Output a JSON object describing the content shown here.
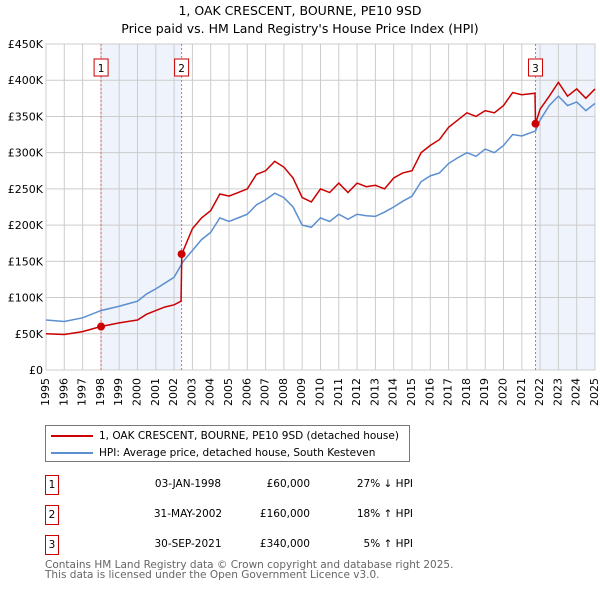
{
  "chart_data": {
    "type": "line",
    "title": "1, OAK CRESCENT, BOURNE, PE10 9SD",
    "subtitle": "Price paid vs. HM Land Registry's House Price Index (HPI)",
    "xlim": [
      1995,
      2025
    ],
    "ylim": [
      0,
      450000
    ],
    "x_ticks": [
      "1995",
      "1996",
      "1997",
      "1998",
      "1999",
      "2000",
      "2001",
      "2002",
      "2003",
      "2004",
      "2005",
      "2006",
      "2007",
      "2008",
      "2009",
      "2010",
      "2011",
      "2012",
      "2013",
      "2014",
      "2015",
      "2016",
      "2017",
      "2018",
      "2019",
      "2020",
      "2021",
      "2022",
      "2023",
      "2024",
      "2025"
    ],
    "y_ticks": [
      {
        "v": 0,
        "label": "£0"
      },
      {
        "v": 50000,
        "label": "£50K"
      },
      {
        "v": 100000,
        "label": "£100K"
      },
      {
        "v": 150000,
        "label": "£150K"
      },
      {
        "v": 200000,
        "label": "£200K"
      },
      {
        "v": 250000,
        "label": "£250K"
      },
      {
        "v": 300000,
        "label": "£300K"
      },
      {
        "v": 350000,
        "label": "£350K"
      },
      {
        "v": 400000,
        "label": "£400K"
      },
      {
        "v": 450000,
        "label": "£450K"
      }
    ],
    "grid": true,
    "series": [
      {
        "name": "1, OAK CRESCENT, BOURNE, PE10 9SD (detached house)",
        "color": "#cc0000",
        "points": [
          [
            1995,
            50
          ],
          [
            1996,
            49
          ],
          [
            1997,
            53
          ],
          [
            1998,
            60
          ],
          [
            1999,
            65
          ],
          [
            2000,
            69
          ],
          [
            2000.5,
            77
          ],
          [
            2001,
            82
          ],
          [
            2001.5,
            87
          ],
          [
            2002,
            90
          ],
          [
            2002.38,
            95
          ],
          [
            2002.42,
            160
          ],
          [
            2003,
            195
          ],
          [
            2003.5,
            210
          ],
          [
            2004,
            220
          ],
          [
            2004.5,
            243
          ],
          [
            2005,
            240
          ],
          [
            2005.5,
            245
          ],
          [
            2006,
            250
          ],
          [
            2006.5,
            270
          ],
          [
            2007,
            275
          ],
          [
            2007.5,
            288
          ],
          [
            2008,
            280
          ],
          [
            2008.5,
            265
          ],
          [
            2009,
            238
          ],
          [
            2009.5,
            232
          ],
          [
            2010,
            250
          ],
          [
            2010.5,
            245
          ],
          [
            2011,
            258
          ],
          [
            2011.5,
            245
          ],
          [
            2012,
            258
          ],
          [
            2012.5,
            253
          ],
          [
            2013,
            255
          ],
          [
            2013.5,
            250
          ],
          [
            2014,
            265
          ],
          [
            2014.5,
            272
          ],
          [
            2015,
            275
          ],
          [
            2015.5,
            300
          ],
          [
            2016,
            310
          ],
          [
            2016.5,
            318
          ],
          [
            2017,
            335
          ],
          [
            2017.5,
            345
          ],
          [
            2018,
            355
          ],
          [
            2018.5,
            350
          ],
          [
            2019,
            358
          ],
          [
            2019.5,
            355
          ],
          [
            2020,
            365
          ],
          [
            2020.5,
            383
          ],
          [
            2021,
            380
          ],
          [
            2021.72,
            382
          ],
          [
            2021.75,
            340
          ],
          [
            2022,
            360
          ],
          [
            2022.5,
            378
          ],
          [
            2023,
            397
          ],
          [
            2023.5,
            378
          ],
          [
            2024,
            388
          ],
          [
            2024.5,
            375
          ],
          [
            2025,
            388
          ]
        ]
      },
      {
        "name": "HPI: Average price, detached house, South Kesteven",
        "color": "#5b8fd0",
        "points": [
          [
            1995,
            69
          ],
          [
            1996,
            67
          ],
          [
            1997,
            72
          ],
          [
            1998,
            82
          ],
          [
            1999,
            88
          ],
          [
            2000,
            95
          ],
          [
            2000.5,
            105
          ],
          [
            2001,
            112
          ],
          [
            2001.5,
            120
          ],
          [
            2002,
            128
          ],
          [
            2002.5,
            150
          ],
          [
            2003,
            165
          ],
          [
            2003.5,
            180
          ],
          [
            2004,
            190
          ],
          [
            2004.5,
            210
          ],
          [
            2005,
            205
          ],
          [
            2005.5,
            210
          ],
          [
            2006,
            215
          ],
          [
            2006.5,
            228
          ],
          [
            2007,
            235
          ],
          [
            2007.5,
            244
          ],
          [
            2008,
            238
          ],
          [
            2008.5,
            225
          ],
          [
            2009,
            200
          ],
          [
            2009.5,
            197
          ],
          [
            2010,
            210
          ],
          [
            2010.5,
            205
          ],
          [
            2011,
            215
          ],
          [
            2011.5,
            208
          ],
          [
            2012,
            215
          ],
          [
            2012.5,
            213
          ],
          [
            2013,
            212
          ],
          [
            2013.5,
            218
          ],
          [
            2014,
            225
          ],
          [
            2014.5,
            233
          ],
          [
            2015,
            240
          ],
          [
            2015.5,
            260
          ],
          [
            2016,
            268
          ],
          [
            2016.5,
            272
          ],
          [
            2017,
            285
          ],
          [
            2017.5,
            293
          ],
          [
            2018,
            300
          ],
          [
            2018.5,
            295
          ],
          [
            2019,
            305
          ],
          [
            2019.5,
            300
          ],
          [
            2020,
            310
          ],
          [
            2020.5,
            325
          ],
          [
            2021,
            323
          ],
          [
            2021.75,
            330
          ],
          [
            2022,
            345
          ],
          [
            2022.5,
            365
          ],
          [
            2023,
            378
          ],
          [
            2023.5,
            365
          ],
          [
            2024,
            370
          ],
          [
            2024.5,
            358
          ],
          [
            2025,
            368
          ]
        ]
      }
    ],
    "value_unit": "£ thousands",
    "sales": [
      {
        "n": "1",
        "x": 1998.01,
        "price": 60000,
        "date": "03-JAN-1998",
        "price_label": "£60,000",
        "hpi": "27% ↓ HPI"
      },
      {
        "n": "2",
        "x": 2002.41,
        "price": 160000,
        "date": "31-MAY-2002",
        "price_label": "£160,000",
        "hpi": "18% ↑ HPI"
      },
      {
        "n": "3",
        "x": 2021.75,
        "price": 340000,
        "date": "30-SEP-2021",
        "price_label": "£340,000",
        "hpi": "5% ↑ HPI"
      }
    ],
    "shaded_ranges": [
      [
        1998.01,
        2002.41
      ],
      [
        2021.75,
        2025
      ]
    ]
  },
  "legend": {
    "red": "1, OAK CRESCENT, BOURNE, PE10 9SD (detached house)",
    "blue": "HPI: Average price, detached house, South Kesteven"
  },
  "footer": {
    "line1": "Contains HM Land Registry data © Crown copyright and database right 2025.",
    "line2": "This data is licensed under the Open Government Licence v3.0."
  }
}
